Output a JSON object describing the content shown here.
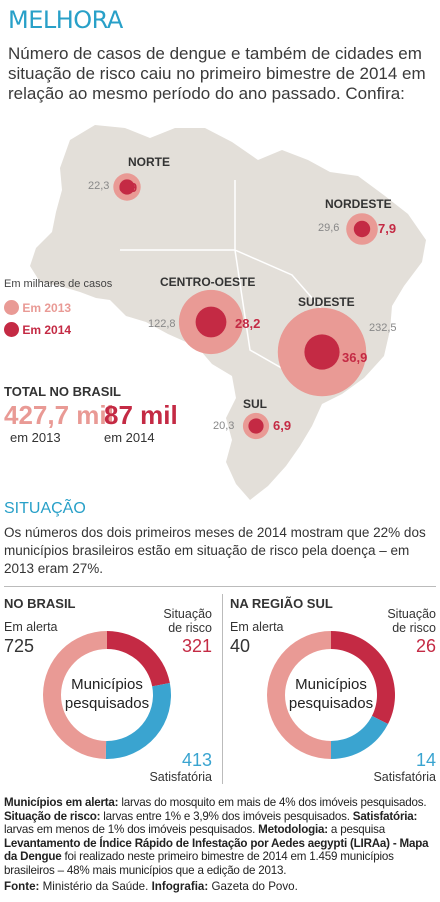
{
  "title": "MELHORA",
  "intro": "Número de casos de dengue e também de cidades em situação de risco caiu no primeiro bimestre de 2014 em relação ao mesmo período do ano passado. Confira:",
  "legend": {
    "title": "Em milhares de casos",
    "y2013": "Em 2013",
    "y2014": "Em 2014",
    "color2013": "#e99a95",
    "color2014": "#c42a44"
  },
  "chart_data": [
    {
      "type": "bubble",
      "title": "",
      "unit": "Em milhares de casos",
      "categories": [
        "NORTE",
        "NORDESTE",
        "CENTRO-OESTE",
        "SUDESTE",
        "SUL"
      ],
      "series": [
        {
          "name": "Em 2013",
          "values": [
            22.3,
            29.6,
            122.8,
            232.5,
            20.3
          ]
        },
        {
          "name": "Em 2014",
          "values": [
            6.9,
            7.9,
            28.2,
            36.9,
            6.9
          ]
        }
      ],
      "labels2013": [
        "22,3",
        "29,6",
        "122,8",
        "232,5",
        "20,3"
      ],
      "labels2014": [
        "6,9",
        "7,9",
        "28,2",
        "36,9",
        "6,9"
      ]
    },
    {
      "type": "pie",
      "title": "NO BRASIL",
      "center_label": [
        "Municípios",
        "pesquisados"
      ],
      "categories": [
        "Em alerta",
        "Situação de risco",
        "Satisfatória"
      ],
      "values": [
        725,
        321,
        413
      ],
      "colors": [
        "#e99a95",
        "#c42a44",
        "#3aa4d0"
      ]
    },
    {
      "type": "pie",
      "title": "NA REGIÃO SUL",
      "center_label": [
        "Municípios",
        "pesquisados"
      ],
      "categories": [
        "Em alerta",
        "Situação de risco",
        "Satisfatória"
      ],
      "values": [
        40,
        26,
        14
      ],
      "colors": [
        "#e99a95",
        "#c42a44",
        "#3aa4d0"
      ]
    }
  ],
  "total": {
    "label": "TOTAL NO BRASIL",
    "v2013": "427,7 mil",
    "y2013": "em 2013",
    "v2014": "87 mil",
    "y2014": "em 2014"
  },
  "situacao": {
    "heading": "SITUAÇÃO",
    "text": "Os números dos dois primeiros meses de 2014 mostram que 22% dos municípios brasileiros estão em situação de risco pela doença – em 2013 eram 27%."
  },
  "brasil": {
    "alerta_label": "Em alerta",
    "alerta_value": "725",
    "risco_label1": "Situação",
    "risco_label2": "de risco",
    "risco_value": "321",
    "satisf_value": "413",
    "satisf_label": "Satisfatória"
  },
  "sul": {
    "alerta_label": "Em alerta",
    "alerta_value": "40",
    "risco_label1": "Situação",
    "risco_label2": "de risco",
    "risco_value": "26",
    "satisf_value": "14",
    "satisf_label": "Satisfatória"
  },
  "notes": {
    "t1": "Municípios em alerta:",
    "d1": " larvas do mosquito em mais de 4% dos imóveis pesquisados. ",
    "t2": "Situação de risco:",
    "d2": " larvas entre 1% e 3,9% dos imóveis pesquisados. ",
    "t3": "Satisfatória:",
    "d3": " larvas em menos de 1% dos imóveis pesquisados. ",
    "t4": "Metodologia:",
    "d4": " a pesquisa ",
    "t5": "Levantamento de Índice Rápido de Infestação por Aedes aegypti (LIRAa) - Mapa da Dengue",
    "d5": " foi realizado neste primeiro bimestre de 2014 em 1.459 municípios brasileiros – 48% mais municípios que a edição de 2013."
  },
  "source": {
    "fonte_label": "Fonte:",
    "fonte": " Ministério da Saúde. ",
    "info_label": "Infografia:",
    "info": " Gazeta do Povo."
  }
}
